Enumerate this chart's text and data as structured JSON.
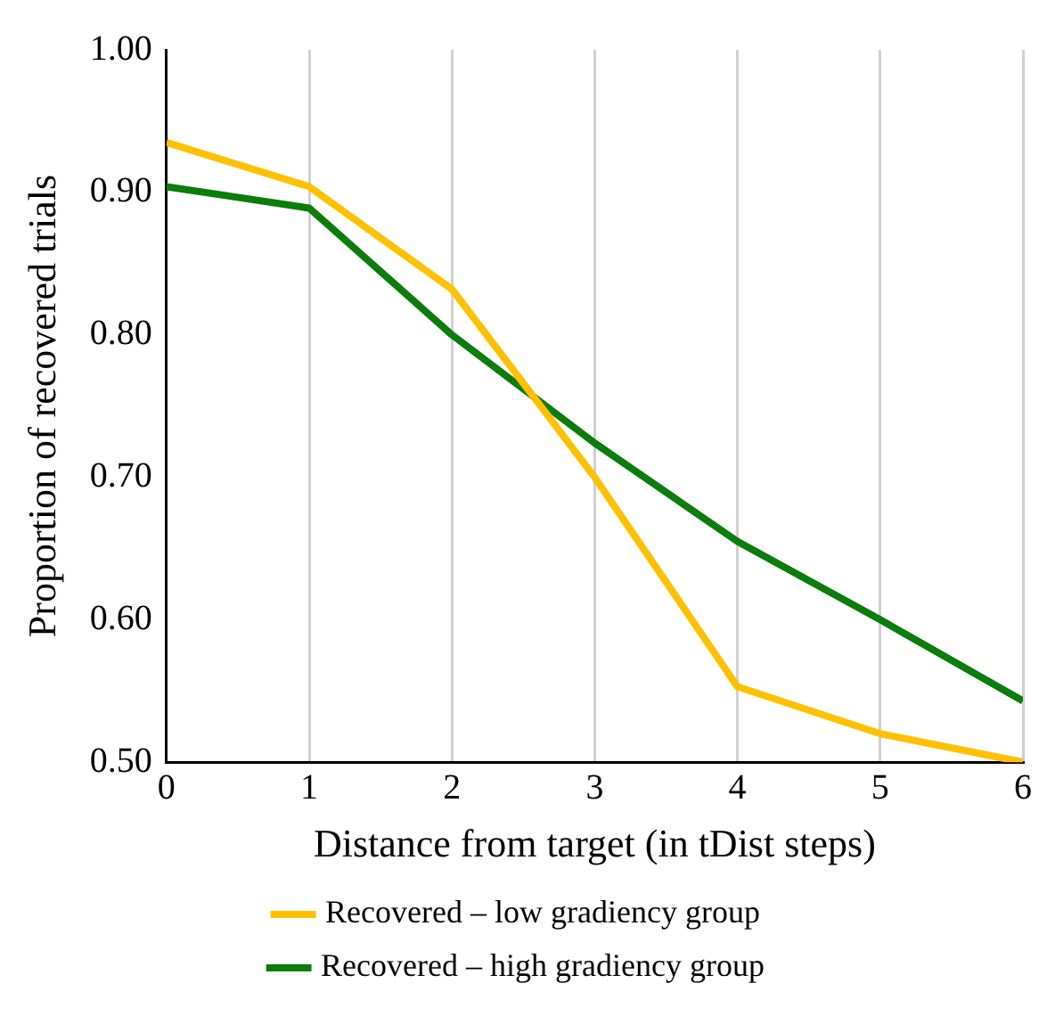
{
  "chart_data": {
    "type": "line",
    "xlabel": "Distance from target (in tDist steps)",
    "ylabel": "Proportion of recovered trials",
    "x": [
      0,
      1,
      2,
      3,
      4,
      5,
      6
    ],
    "series": [
      {
        "name": "Recovered – low gradiency group",
        "color": "#ffc000",
        "values": [
          0.935,
          0.904,
          0.832,
          0.7,
          0.553,
          0.52,
          0.5
        ]
      },
      {
        "name": "Recovered – high gradiency group",
        "color": "#0a7d0a",
        "values": [
          0.904,
          0.889,
          0.8,
          0.724,
          0.655,
          0.6,
          0.543
        ]
      }
    ],
    "xlim": [
      0,
      6
    ],
    "xticks": [
      0,
      1,
      2,
      3,
      4,
      5,
      6
    ],
    "ylim": [
      0.5,
      1.0
    ],
    "yticks": [
      {
        "value": 0.5,
        "label": "0.50"
      },
      {
        "value": 0.6,
        "label": "0.60"
      },
      {
        "value": 0.7,
        "label": "0.70"
      },
      {
        "value": 0.8,
        "label": "0.80"
      },
      {
        "value": 0.9,
        "label": "0.90"
      },
      {
        "value": 1.0,
        "label": "1.00"
      }
    ],
    "grid": "x",
    "legend": "bottom",
    "marker": "none",
    "line_style": "solid"
  }
}
